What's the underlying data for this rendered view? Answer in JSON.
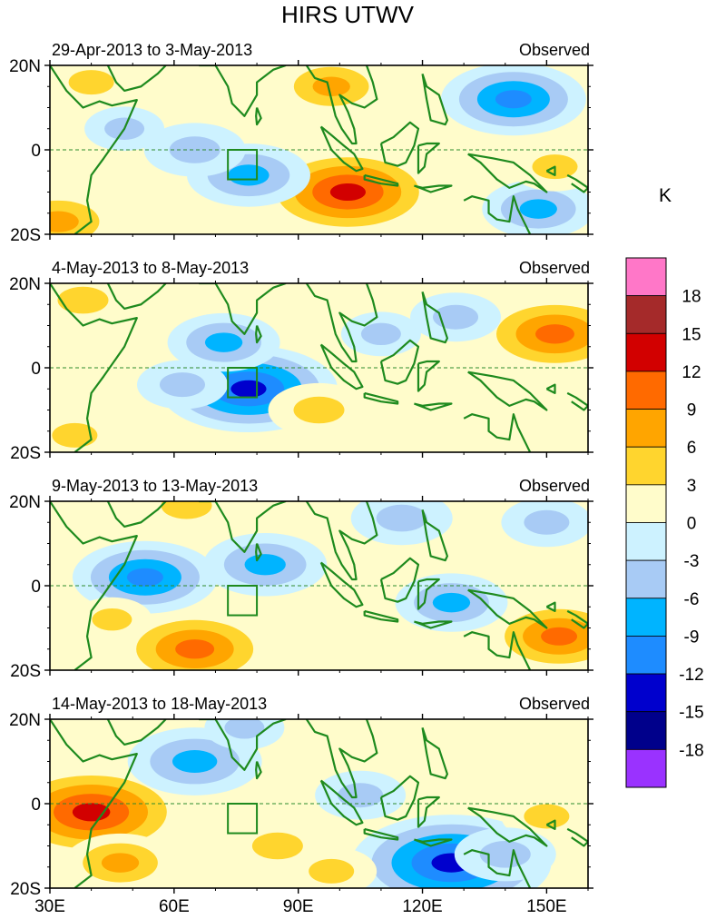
{
  "chart_data": {
    "type": "heatmap",
    "title": "HIRS UTWV",
    "colorbar": {
      "units": "K",
      "levels": [
        "18",
        "15",
        "12",
        "9",
        "6",
        "3",
        "0",
        "-3",
        "-6",
        "-9",
        "-12",
        "-15",
        "-18"
      ],
      "colors": [
        "#ff77c8",
        "#a52a2a",
        "#d20000",
        "#ff6a00",
        "#ffa500",
        "#ffd52e",
        "#fffccb",
        "#cdf2ff",
        "#a8cbf5",
        "#00b4ff",
        "#1e8cff",
        "#0000cd",
        "#00008b",
        "#9a32ff"
      ]
    },
    "xaxis": {
      "range": [
        30,
        160
      ],
      "ticks": [
        30,
        60,
        90,
        120,
        150
      ],
      "tick_labels": [
        "30E",
        "60E",
        "90E",
        "120E",
        "150E"
      ]
    },
    "yaxis": {
      "range": [
        -20,
        20
      ],
      "ticks": [
        20,
        0,
        -20
      ],
      "tick_labels": [
        "20N",
        "0",
        "20S"
      ]
    },
    "box_region": {
      "lon": [
        73,
        80
      ],
      "lat": [
        -7,
        0
      ]
    },
    "equator_line": "dashed",
    "panels": [
      {
        "period": "29-Apr-2013 to 3-May-2013",
        "label": "Observed",
        "anomalies": [
          {
            "lon": 102,
            "lat": -10,
            "value": 13
          },
          {
            "lon": 40,
            "lat": 16,
            "value": 5
          },
          {
            "lon": 98,
            "lat": 15,
            "value": 7
          },
          {
            "lon": 32,
            "lat": -17,
            "value": 8
          },
          {
            "lon": 78,
            "lat": -6,
            "value": -8
          },
          {
            "lon": 65,
            "lat": 0,
            "value": -6
          },
          {
            "lon": 142,
            "lat": 12,
            "value": -10
          },
          {
            "lon": 148,
            "lat": -14,
            "value": -7
          },
          {
            "lon": 152,
            "lat": -4,
            "value": 5
          },
          {
            "lon": 48,
            "lat": 5,
            "value": -4
          }
        ]
      },
      {
        "period": "4-May-2013 to 8-May-2013",
        "label": "Observed",
        "anomalies": [
          {
            "lon": 78,
            "lat": -5,
            "value": -13
          },
          {
            "lon": 72,
            "lat": 6,
            "value": -7
          },
          {
            "lon": 152,
            "lat": 8,
            "value": 11
          },
          {
            "lon": 95,
            "lat": -10,
            "value": 6
          },
          {
            "lon": 38,
            "lat": 16,
            "value": 6
          },
          {
            "lon": 36,
            "lat": -16,
            "value": 5
          },
          {
            "lon": 110,
            "lat": 8,
            "value": -4
          },
          {
            "lon": 128,
            "lat": 12,
            "value": -5
          },
          {
            "lon": 62,
            "lat": -4,
            "value": -5
          }
        ]
      },
      {
        "period": "9-May-2013 to 13-May-2013",
        "label": "Observed",
        "anomalies": [
          {
            "lon": 65,
            "lat": -15,
            "value": 11
          },
          {
            "lon": 153,
            "lat": -12,
            "value": 10
          },
          {
            "lon": 53,
            "lat": 2,
            "value": -10
          },
          {
            "lon": 82,
            "lat": 5,
            "value": -8
          },
          {
            "lon": 63,
            "lat": 19,
            "value": 6
          },
          {
            "lon": 115,
            "lat": 16,
            "value": -6
          },
          {
            "lon": 127,
            "lat": -4,
            "value": -7
          },
          {
            "lon": 45,
            "lat": -8,
            "value": 4
          },
          {
            "lon": 150,
            "lat": 15,
            "value": -5
          }
        ]
      },
      {
        "period": "14-May-2013 to 18-May-2013",
        "label": "Observed",
        "anomalies": [
          {
            "lon": 40,
            "lat": -2,
            "value": 14
          },
          {
            "lon": 47,
            "lat": -14,
            "value": 7
          },
          {
            "lon": 127,
            "lat": -14,
            "value": -15
          },
          {
            "lon": 65,
            "lat": 10,
            "value": -9
          },
          {
            "lon": 85,
            "lat": -10,
            "value": 6
          },
          {
            "lon": 98,
            "lat": -16,
            "value": 5
          },
          {
            "lon": 105,
            "lat": 2,
            "value": -5
          },
          {
            "lon": 150,
            "lat": -3,
            "value": 5
          },
          {
            "lon": 77,
            "lat": 18,
            "value": -4
          },
          {
            "lon": 140,
            "lat": -12,
            "value": -6
          }
        ]
      }
    ]
  }
}
